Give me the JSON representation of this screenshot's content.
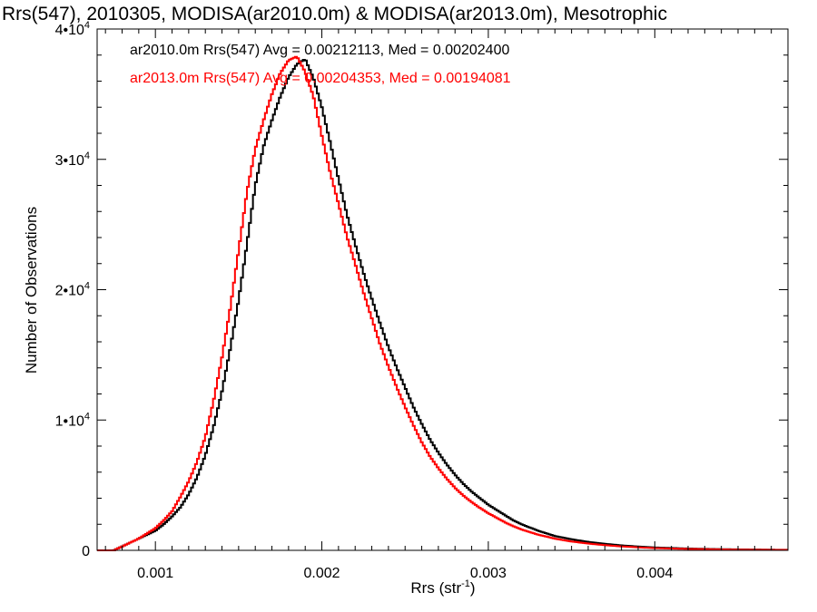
{
  "chart_data": {
    "type": "line",
    "title": "Rrs(547), 2010305, MODISA(ar2010.0m) & MODISA(ar2013.0m), Mesotrophic",
    "xlabel": "Rrs (str",
    "xlabel_sup": "-1",
    "xlabel_end": ")",
    "ylabel": "Number of Observations",
    "xlim": [
      0.00065,
      0.0048
    ],
    "ylim": [
      0,
      40000
    ],
    "x_ticks": [
      {
        "value": 0.001,
        "label": "0.001"
      },
      {
        "value": 0.002,
        "label": "0.002"
      },
      {
        "value": 0.003,
        "label": "0.003"
      },
      {
        "value": 0.004,
        "label": "0.004"
      }
    ],
    "y_ticks": [
      {
        "value": 0,
        "base": "0",
        "exp": ""
      },
      {
        "value": 10000,
        "base": "1•10",
        "exp": "4"
      },
      {
        "value": 20000,
        "base": "2•10",
        "exp": "4"
      },
      {
        "value": 30000,
        "base": "3•10",
        "exp": "4"
      },
      {
        "value": 40000,
        "base": "4•10",
        "exp": "4"
      }
    ],
    "legend": [
      {
        "text": "ar2010.0m Rrs(547) Avg = 0.00212113, Med = 0.00202400",
        "color": "#000000"
      },
      {
        "text": "ar2013.0m Rrs(547) Avg = 0.00204353, Med = 0.00194081",
        "color": "#ff0000"
      }
    ],
    "series": [
      {
        "color": "#000000",
        "style": "step",
        "points": [
          [
            0.00065,
            0
          ],
          [
            0.00075,
            0
          ],
          [
            0.0008,
            300
          ],
          [
            0.00085,
            600
          ],
          [
            0.0009,
            900
          ],
          [
            0.00095,
            1200
          ],
          [
            0.001,
            1500
          ],
          [
            0.00105,
            2000
          ],
          [
            0.0011,
            2600
          ],
          [
            0.00115,
            3300
          ],
          [
            0.0012,
            4300
          ],
          [
            0.00125,
            5600
          ],
          [
            0.0013,
            7300
          ],
          [
            0.00135,
            9500
          ],
          [
            0.0014,
            12200
          ],
          [
            0.00145,
            15500
          ],
          [
            0.0015,
            19200
          ],
          [
            0.00155,
            23500
          ],
          [
            0.0016,
            28000
          ],
          [
            0.00165,
            31000
          ],
          [
            0.0017,
            33000
          ],
          [
            0.00175,
            34800
          ],
          [
            0.0018,
            36300
          ],
          [
            0.00185,
            37300
          ],
          [
            0.0019,
            37700
          ],
          [
            0.00195,
            36200
          ],
          [
            0.002,
            34000
          ],
          [
            0.00205,
            31300
          ],
          [
            0.0021,
            28500
          ],
          [
            0.00215,
            25800
          ],
          [
            0.0022,
            23500
          ],
          [
            0.00225,
            21300
          ],
          [
            0.0023,
            19300
          ],
          [
            0.00235,
            17400
          ],
          [
            0.0024,
            15600
          ],
          [
            0.00245,
            14000
          ],
          [
            0.0025,
            12500
          ],
          [
            0.00255,
            11000
          ],
          [
            0.0026,
            9700
          ],
          [
            0.00265,
            8500
          ],
          [
            0.0027,
            7500
          ],
          [
            0.00275,
            6600
          ],
          [
            0.0028,
            5800
          ],
          [
            0.00285,
            5100
          ],
          [
            0.0029,
            4500
          ],
          [
            0.00295,
            4000
          ],
          [
            0.003,
            3500
          ],
          [
            0.00305,
            3100
          ],
          [
            0.0031,
            2700
          ],
          [
            0.00315,
            2300
          ],
          [
            0.0032,
            2000
          ],
          [
            0.0033,
            1500
          ],
          [
            0.0034,
            1100
          ],
          [
            0.0035,
            850
          ],
          [
            0.0036,
            650
          ],
          [
            0.0037,
            500
          ],
          [
            0.0038,
            380
          ],
          [
            0.0039,
            290
          ],
          [
            0.004,
            220
          ],
          [
            0.0042,
            140
          ],
          [
            0.0044,
            90
          ],
          [
            0.0046,
            60
          ],
          [
            0.0048,
            40
          ]
        ]
      },
      {
        "color": "#ff0000",
        "style": "step",
        "points": [
          [
            0.00065,
            0
          ],
          [
            0.00075,
            0
          ],
          [
            0.0008,
            300
          ],
          [
            0.00085,
            600
          ],
          [
            0.0009,
            900
          ],
          [
            0.00095,
            1300
          ],
          [
            0.001,
            1700
          ],
          [
            0.00105,
            2300
          ],
          [
            0.0011,
            3000
          ],
          [
            0.00115,
            4100
          ],
          [
            0.0012,
            5300
          ],
          [
            0.00125,
            6800
          ],
          [
            0.0013,
            8700
          ],
          [
            0.00135,
            11500
          ],
          [
            0.0014,
            14800
          ],
          [
            0.00145,
            18600
          ],
          [
            0.0015,
            23000
          ],
          [
            0.00155,
            27500
          ],
          [
            0.0016,
            30800
          ],
          [
            0.00165,
            33000
          ],
          [
            0.0017,
            35000
          ],
          [
            0.00175,
            36600
          ],
          [
            0.0018,
            37600
          ],
          [
            0.00185,
            37900
          ],
          [
            0.0019,
            36700
          ],
          [
            0.00195,
            34800
          ],
          [
            0.002,
            31800
          ],
          [
            0.00205,
            29000
          ],
          [
            0.0021,
            26600
          ],
          [
            0.00215,
            24100
          ],
          [
            0.0022,
            22000
          ],
          [
            0.00225,
            19800
          ],
          [
            0.0023,
            17800
          ],
          [
            0.00235,
            15800
          ],
          [
            0.0024,
            14100
          ],
          [
            0.00245,
            12500
          ],
          [
            0.0025,
            11000
          ],
          [
            0.00255,
            9600
          ],
          [
            0.0026,
            8300
          ],
          [
            0.00265,
            7200
          ],
          [
            0.0027,
            6300
          ],
          [
            0.00275,
            5500
          ],
          [
            0.0028,
            4800
          ],
          [
            0.00285,
            4200
          ],
          [
            0.0029,
            3700
          ],
          [
            0.00295,
            3250
          ],
          [
            0.003,
            2850
          ],
          [
            0.00305,
            2500
          ],
          [
            0.0031,
            2150
          ],
          [
            0.00315,
            1850
          ],
          [
            0.0032,
            1600
          ],
          [
            0.0033,
            1200
          ],
          [
            0.0034,
            900
          ],
          [
            0.0035,
            680
          ],
          [
            0.0036,
            520
          ],
          [
            0.0037,
            400
          ],
          [
            0.0038,
            300
          ],
          [
            0.0039,
            230
          ],
          [
            0.004,
            170
          ],
          [
            0.0042,
            110
          ],
          [
            0.0044,
            70
          ],
          [
            0.0046,
            45
          ],
          [
            0.0048,
            30
          ]
        ]
      }
    ]
  }
}
